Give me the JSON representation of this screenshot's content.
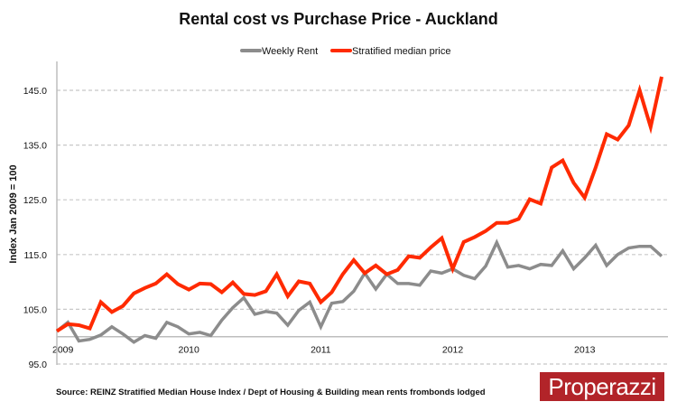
{
  "chart_data": {
    "type": "line",
    "title": "Rental cost vs Purchase Price - Auckland",
    "xlabel": "",
    "ylabel": "Index Jan 2009 = 100",
    "ylim": [
      95,
      150
    ],
    "yticks": [
      "95.0",
      "105.0",
      "115.0",
      "125.0",
      "135.0",
      "145.0"
    ],
    "ytick_values": [
      95,
      105,
      115,
      125,
      135,
      145
    ],
    "xticks": [
      "2009",
      "2010",
      "2011",
      "2012",
      "2013"
    ],
    "xtick_positions": [
      0,
      12,
      24,
      36,
      48
    ],
    "baseline": 100,
    "grid": true,
    "legend_position": "top",
    "series": [
      {
        "name": "Weekly Rent",
        "color": "#8c8c8c",
        "values": [
          101.0,
          102.6,
          99.2,
          99.5,
          100.3,
          101.8,
          100.5,
          99.0,
          100.2,
          99.7,
          102.6,
          101.8,
          100.5,
          100.8,
          100.2,
          103.0,
          105.3,
          107.1,
          104.1,
          104.6,
          104.3,
          102.1,
          104.8,
          106.3,
          101.8,
          106.1,
          106.4,
          108.3,
          111.6,
          108.7,
          111.4,
          109.7,
          109.7,
          109.4,
          112.0,
          111.6,
          112.4,
          111.2,
          110.6,
          112.9,
          117.2,
          112.7,
          113.0,
          112.4,
          113.2,
          113.0,
          115.7,
          112.4,
          114.4,
          116.7,
          113.0,
          115.0,
          116.2,
          116.5,
          116.5,
          114.7
        ]
      },
      {
        "name": "Stratified median price",
        "color": "#ff2a00",
        "values": [
          101.0,
          102.3,
          102.1,
          101.5,
          106.3,
          104.5,
          105.6,
          107.9,
          108.9,
          109.7,
          111.4,
          109.6,
          108.6,
          109.7,
          109.6,
          108.1,
          109.9,
          107.8,
          107.6,
          108.3,
          111.4,
          107.4,
          110.1,
          109.7,
          106.3,
          108.1,
          111.4,
          114.0,
          111.6,
          113.0,
          111.4,
          112.2,
          114.7,
          114.4,
          116.3,
          118.0,
          112.4,
          117.3,
          118.2,
          119.3,
          120.8,
          120.8,
          121.5,
          125.1,
          124.3,
          130.9,
          132.2,
          128.1,
          125.4,
          130.9,
          137.0,
          136.0,
          138.6,
          145.0,
          138.3,
          147.5
        ]
      }
    ]
  },
  "source": "Source: REINZ Stratified Median House Index / Dept of Housing & Building mean rents frombonds lodged",
  "logo": {
    "text": "Properazzi",
    "color": "#b22429"
  }
}
